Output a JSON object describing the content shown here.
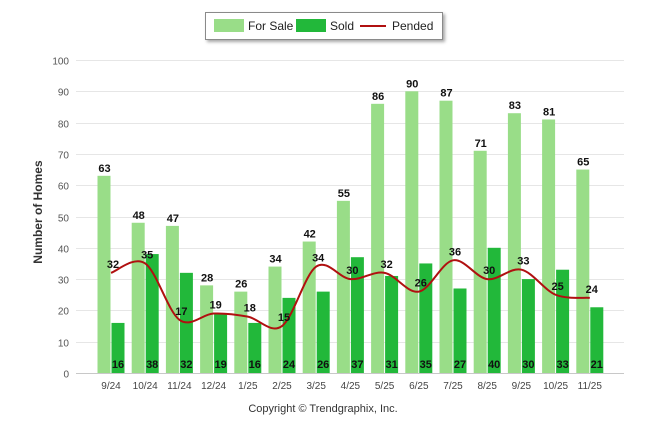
{
  "chart_data": {
    "type": "bar",
    "title": "",
    "ylabel": "Number of Homes",
    "xlabel": "",
    "ylim": [
      0,
      100
    ],
    "yticks": [
      0,
      10,
      20,
      30,
      40,
      50,
      60,
      70,
      80,
      90,
      100
    ],
    "grid": true,
    "legend_position": "top-center",
    "categories": [
      "9/24",
      "10/24",
      "11/24",
      "12/24",
      "1/25",
      "2/25",
      "3/25",
      "4/25",
      "5/25",
      "6/25",
      "7/25",
      "8/25",
      "9/25",
      "10/25",
      "11/25"
    ],
    "series": [
      {
        "name": "For Sale",
        "kind": "bar",
        "color": "#99dd88",
        "values": [
          63,
          48,
          47,
          28,
          26,
          34,
          42,
          55,
          86,
          90,
          87,
          71,
          83,
          81,
          65
        ]
      },
      {
        "name": "Sold",
        "kind": "bar",
        "color": "#22b83a",
        "values": [
          16,
          38,
          32,
          19,
          16,
          24,
          26,
          37,
          31,
          35,
          27,
          40,
          30,
          33,
          21
        ]
      },
      {
        "name": "Pended",
        "kind": "line",
        "color": "#b01010",
        "values": [
          32,
          35,
          17,
          19,
          18,
          15,
          34,
          30,
          32,
          26,
          36,
          30,
          33,
          25,
          24
        ]
      }
    ]
  },
  "legend": {
    "for_sale": "For Sale",
    "sold": "Sold",
    "pended": "Pended"
  },
  "footer": {
    "copyright": "Copyright © Trendgraphix, Inc."
  }
}
